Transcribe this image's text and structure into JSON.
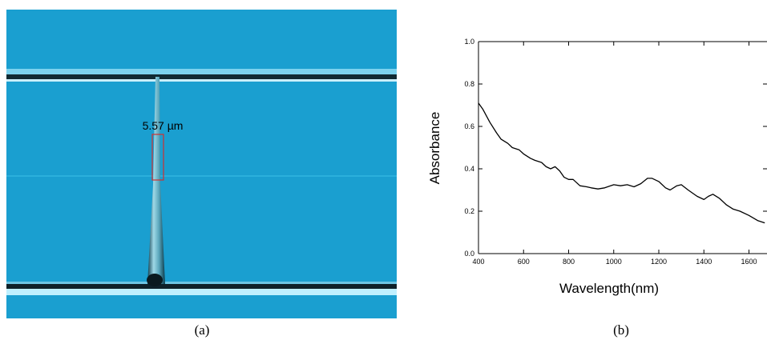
{
  "image_panel": {
    "annotation": "5.57 µm",
    "caption": "(a)"
  },
  "chart_data": {
    "type": "line",
    "caption": "(b)",
    "xlabel": "Wavelength(nm)",
    "ylabel": "Absorbance",
    "xlim": [
      400,
      1680
    ],
    "ylim": [
      0,
      1
    ],
    "xticks": [
      400,
      600,
      800,
      1000,
      1200,
      1400,
      1600
    ],
    "yticks": [
      {
        "value": 0,
        "label": "0.0"
      },
      0.2,
      0.4,
      0.6,
      0.8,
      {
        "value": 1,
        "label": "1.0"
      }
    ],
    "series": [
      {
        "name": "Absorbance",
        "color": "#000000",
        "x": [
          400,
          420,
          450,
          480,
          500,
          530,
          550,
          580,
          600,
          630,
          650,
          680,
          700,
          720,
          740,
          760,
          780,
          800,
          820,
          850,
          880,
          900,
          930,
          960,
          1000,
          1030,
          1060,
          1090,
          1120,
          1150,
          1170,
          1200,
          1230,
          1250,
          1280,
          1300,
          1330,
          1370,
          1400,
          1420,
          1440,
          1470,
          1500,
          1530,
          1560,
          1600,
          1640,
          1670
        ],
        "values": [
          0.71,
          0.68,
          0.62,
          0.57,
          0.54,
          0.52,
          0.5,
          0.49,
          0.47,
          0.45,
          0.44,
          0.43,
          0.41,
          0.4,
          0.41,
          0.39,
          0.36,
          0.35,
          0.35,
          0.32,
          0.315,
          0.31,
          0.305,
          0.31,
          0.325,
          0.32,
          0.325,
          0.315,
          0.33,
          0.355,
          0.355,
          0.34,
          0.31,
          0.3,
          0.32,
          0.325,
          0.3,
          0.27,
          0.255,
          0.27,
          0.28,
          0.26,
          0.23,
          0.21,
          0.2,
          0.18,
          0.155,
          0.145
        ]
      }
    ]
  }
}
